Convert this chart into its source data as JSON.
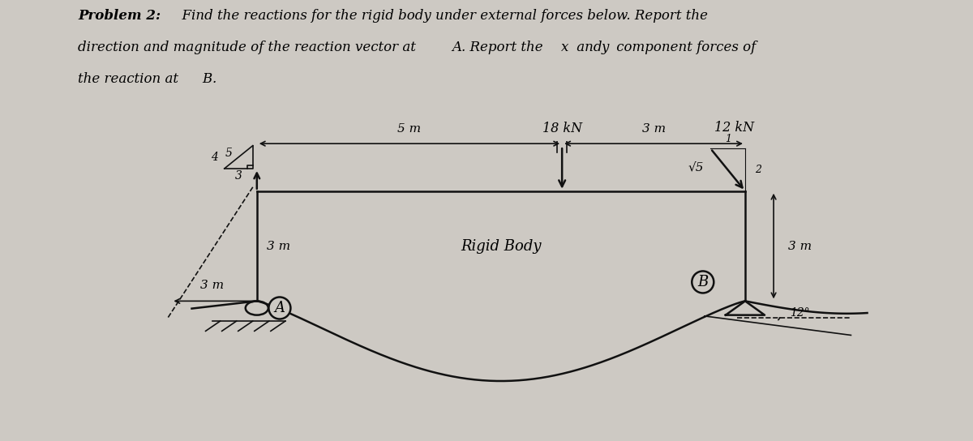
{
  "bg_color": "#cdc9c3",
  "title_bold": "Problem 2:",
  "title_rest": "  Find the reactions for‑the rigid body under external forces below. Report the\ndirection and magnitude of the reaction vector at Â. Report the â and ŷ component forces of\nthe reaction at ².",
  "title_line1": "Problem 2:  Find the reactions for the rigid body under external forces below. Report the",
  "title_line2": "direction and magnitude of the reaction vector at A. Report the x and y component forces of",
  "title_line3": "the reaction at B.",
  "body_label": "Rigid Body",
  "label_A": "A",
  "label_B": "B",
  "dim_5m": "5 m",
  "dim_3m_top": "3 m",
  "dim_3m_left": "3 m",
  "dim_3m_right": "3 m",
  "force_18kN": "18 kN",
  "force_12kN": "12 kN",
  "angle_12": "12°",
  "sqrt5_label": "√5",
  "num_1": "1",
  "num_2": "2",
  "num_4": "4",
  "num_3": "3",
  "num_5": "5",
  "line_color": "#111111",
  "lw_main": 1.8,
  "lw_thin": 1.2,
  "fontsize_title": 12,
  "fontsize_dim": 11,
  "fontsize_label": 13,
  "fontsize_small": 10
}
